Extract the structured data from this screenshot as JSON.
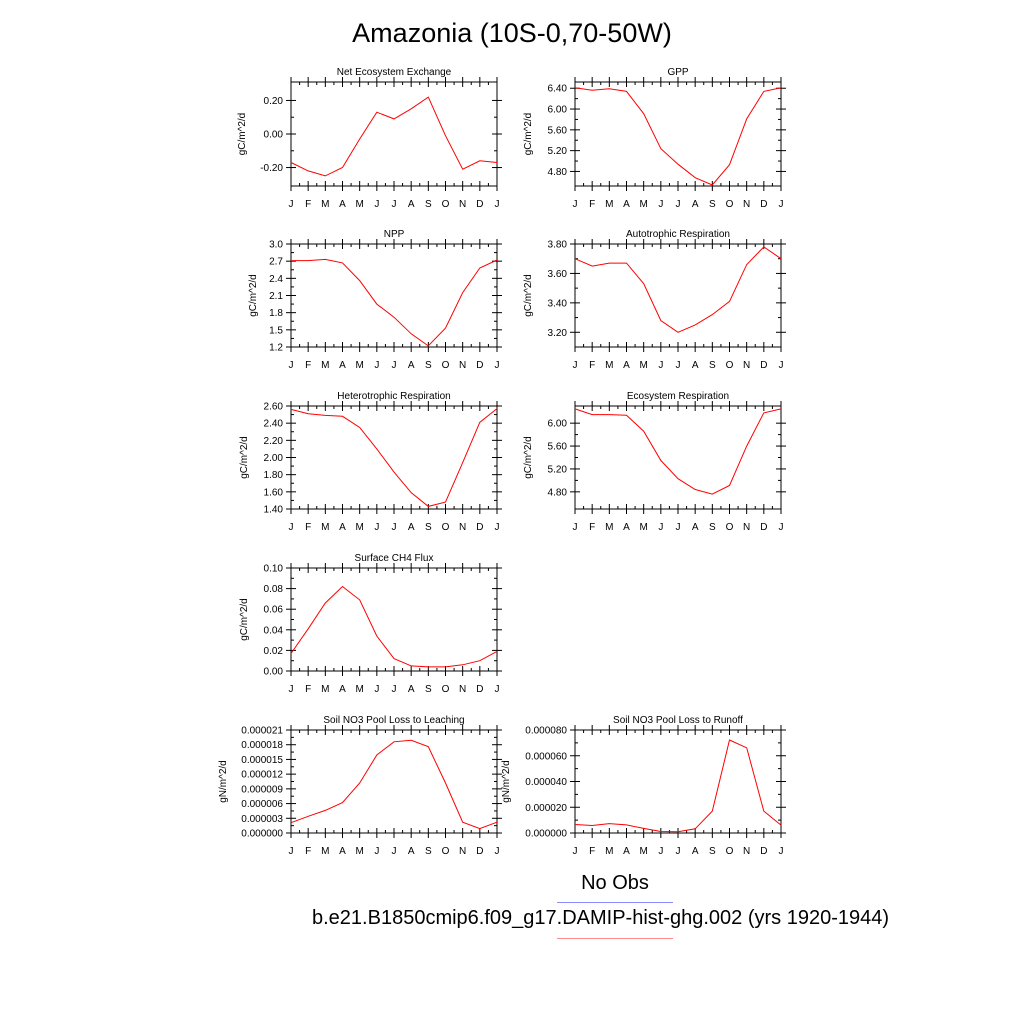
{
  "title": "Amazonia (10S-0,70-50W)",
  "legend": {
    "obs_label": "No Obs",
    "obs_color": "#8b8bff",
    "model_label": "b.e21.B1850cmip6.f09_g17.DAMIP-hist-ghg.002 (yrs 1920-1944)",
    "model_color": "#ff8b8b"
  },
  "line_color": "#ff0000",
  "chart_data": [
    {
      "type": "line",
      "title": "Net Ecosystem Exchange",
      "ylabel": "gC/m^2/d",
      "categories": [
        "J",
        "F",
        "M",
        "A",
        "M",
        "J",
        "J",
        "A",
        "S",
        "O",
        "N",
        "D",
        "J"
      ],
      "values": [
        -0.17,
        -0.22,
        -0.25,
        -0.2,
        -0.03,
        0.13,
        0.09,
        0.15,
        0.22,
        -0.01,
        -0.21,
        -0.16,
        -0.17
      ],
      "ylim": [
        -0.31,
        0.31
      ],
      "yticks": [
        -0.2,
        0.0,
        0.2
      ],
      "yticklabels": [
        "-0.20",
        "0.00",
        "0.20"
      ]
    },
    {
      "type": "line",
      "title": "GPP",
      "ylabel": "gC/m^2/d",
      "categories": [
        "J",
        "F",
        "M",
        "A",
        "M",
        "J",
        "J",
        "A",
        "S",
        "O",
        "N",
        "D",
        "J"
      ],
      "values": [
        6.41,
        6.36,
        6.39,
        6.34,
        5.91,
        5.24,
        4.94,
        4.68,
        4.54,
        4.93,
        5.81,
        6.34,
        6.41
      ],
      "ylim": [
        4.52,
        6.52
      ],
      "yticks": [
        4.8,
        5.2,
        5.6,
        6.0,
        6.4
      ],
      "yticklabels": [
        "4.80",
        "5.20",
        "5.60",
        "6.00",
        "6.40"
      ]
    },
    {
      "type": "line",
      "title": "NPP",
      "ylabel": "gC/m^2/d",
      "categories": [
        "J",
        "F",
        "M",
        "A",
        "M",
        "J",
        "J",
        "A",
        "S",
        "O",
        "N",
        "D",
        "J"
      ],
      "values": [
        2.71,
        2.71,
        2.73,
        2.67,
        2.36,
        1.95,
        1.72,
        1.43,
        1.22,
        1.53,
        2.15,
        2.58,
        2.72
      ],
      "ylim": [
        1.2,
        3.0
      ],
      "yticks": [
        1.2,
        1.5,
        1.8,
        2.1,
        2.4,
        2.7,
        3.0
      ],
      "yticklabels": [
        "1.2",
        "1.5",
        "1.8",
        "2.1",
        "2.4",
        "2.7",
        "3.0"
      ]
    },
    {
      "type": "line",
      "title": "Autotrophic Respiration",
      "ylabel": "gC/m^2/d",
      "categories": [
        "J",
        "F",
        "M",
        "A",
        "M",
        "J",
        "J",
        "A",
        "S",
        "O",
        "N",
        "D",
        "J"
      ],
      "values": [
        3.7,
        3.65,
        3.67,
        3.67,
        3.53,
        3.28,
        3.2,
        3.25,
        3.32,
        3.41,
        3.66,
        3.78,
        3.7
      ],
      "ylim": [
        3.1,
        3.8
      ],
      "yticks": [
        3.2,
        3.4,
        3.6,
        3.8
      ],
      "yticklabels": [
        "3.20",
        "3.40",
        "3.60",
        "3.80"
      ]
    },
    {
      "type": "line",
      "title": "Heterotrophic Respiration",
      "ylabel": "gC/m^2/d",
      "categories": [
        "J",
        "F",
        "M",
        "A",
        "M",
        "J",
        "J",
        "A",
        "S",
        "O",
        "N",
        "D",
        "J"
      ],
      "values": [
        2.56,
        2.51,
        2.49,
        2.48,
        2.35,
        2.1,
        1.83,
        1.59,
        1.43,
        1.48,
        1.94,
        2.41,
        2.57
      ],
      "ylim": [
        1.4,
        2.6
      ],
      "yticks": [
        1.4,
        1.6,
        1.8,
        2.0,
        2.2,
        2.4,
        2.6
      ],
      "yticklabels": [
        "1.40",
        "1.60",
        "1.80",
        "2.00",
        "2.20",
        "2.40",
        "2.60"
      ]
    },
    {
      "type": "line",
      "title": "Ecosystem Respiration",
      "ylabel": "gC/m^2/d",
      "categories": [
        "J",
        "F",
        "M",
        "A",
        "M",
        "J",
        "J",
        "A",
        "S",
        "O",
        "N",
        "D",
        "J"
      ],
      "values": [
        6.25,
        6.15,
        6.15,
        6.14,
        5.86,
        5.35,
        5.03,
        4.84,
        4.76,
        4.91,
        5.6,
        6.18,
        6.25
      ],
      "ylim": [
        4.5,
        6.3
      ],
      "yticks": [
        4.8,
        5.2,
        5.6,
        6.0
      ],
      "yticklabels": [
        "4.80",
        "5.20",
        "5.60",
        "6.00"
      ]
    },
    {
      "type": "line",
      "title": "Surface CH4 Flux",
      "ylabel": "gC/m^2/d",
      "categories": [
        "J",
        "F",
        "M",
        "A",
        "M",
        "J",
        "J",
        "A",
        "S",
        "O",
        "N",
        "D",
        "J"
      ],
      "values": [
        0.017,
        0.041,
        0.066,
        0.082,
        0.069,
        0.034,
        0.012,
        0.005,
        0.004,
        0.004,
        0.006,
        0.01,
        0.019
      ],
      "ylim": [
        0.0,
        0.1
      ],
      "yticks": [
        0.0,
        0.02,
        0.04,
        0.06,
        0.08,
        0.1
      ],
      "yticklabels": [
        "0.00",
        "0.02",
        "0.04",
        "0.06",
        "0.08",
        "0.10"
      ]
    },
    {
      "type": "line",
      "title": "Soil NO3 Pool Loss to Leaching",
      "ylabel": "gN/m^2/d",
      "categories": [
        "J",
        "F",
        "M",
        "A",
        "M",
        "J",
        "J",
        "A",
        "S",
        "O",
        "N",
        "D",
        "J"
      ],
      "values": [
        2.1e-06,
        3.4e-06,
        4.6e-06,
        6.2e-06,
        1.02e-05,
        1.59e-05,
        1.86e-05,
        1.89e-05,
        1.76e-05,
        1.02e-05,
        2.2e-06,
        9e-07,
        2.2e-06
      ],
      "ylim": [
        0.0,
        2.1e-05
      ],
      "yticks": [
        0.0,
        3e-06,
        6e-06,
        9e-06,
        1.2e-05,
        1.5e-05,
        1.8e-05,
        2.1e-05
      ],
      "yticklabels": [
        "0.000000",
        "0.000003",
        "0.000006",
        "0.000009",
        "0.000012",
        "0.000015",
        "0.000018",
        "0.000021"
      ]
    },
    {
      "type": "line",
      "title": "Soil NO3 Pool Loss to Runoff",
      "ylabel": "gN/m^2/d",
      "categories": [
        "J",
        "F",
        "M",
        "A",
        "M",
        "J",
        "J",
        "A",
        "S",
        "O",
        "N",
        "D",
        "J"
      ],
      "values": [
        6.6e-06,
        5.8e-06,
        7.3e-06,
        6.3e-06,
        3.6e-06,
        1.2e-06,
        9e-07,
        3.3e-06,
        1.7e-05,
        7.22e-05,
        6.62e-05,
        1.7e-05,
        6.1e-06
      ],
      "ylim": [
        0.0,
        8e-05
      ],
      "yticks": [
        0.0,
        2e-05,
        4e-05,
        6e-05,
        8e-05
      ],
      "yticklabels": [
        "0.000000",
        "0.000020",
        "0.000040",
        "0.000060",
        "0.000080"
      ]
    }
  ]
}
